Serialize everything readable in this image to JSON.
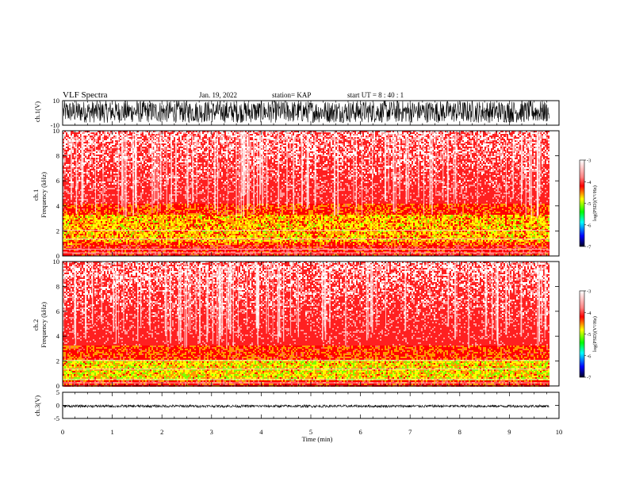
{
  "header": {
    "title": "VLF Spectra",
    "date": "Jan. 19, 2022",
    "station": "station= KAP",
    "start": "start  UT  =   8 : 40 : 1"
  },
  "chart_data": [
    {
      "type": "line",
      "panel": "ch1_waveform",
      "ylabel": "ch.1(V)",
      "ylim": [
        -10,
        10
      ],
      "yticks": [
        "10",
        "-10"
      ],
      "xlim": [
        0,
        10
      ],
      "data_range_x": [
        0,
        9.8
      ],
      "description_values": {
        "typical_amplitude": [
          -8,
          10
        ]
      }
    },
    {
      "type": "heatmap",
      "panel": "ch1_spectrogram",
      "ylabel": "ch.1\nFrequency (kHz)",
      "ylim": [
        0,
        10
      ],
      "yticks": [
        "0",
        "2",
        "4",
        "6",
        "8",
        "10"
      ],
      "xlim": [
        0,
        10
      ],
      "data_range_x": [
        0,
        9.8
      ],
      "colorbar": {
        "label": "log(PSD)(V²/Hz)",
        "range": [
          -7,
          -3
        ],
        "ticks": [
          "-3",
          "-4",
          "-5",
          "-6",
          "-7"
        ],
        "colors": [
          "#ffffff",
          "#ff0000",
          "#ffff00",
          "#00ff00",
          "#00ffff",
          "#0000ff",
          "#000000"
        ]
      },
      "bands": [
        {
          "f_low": 3.3,
          "f_high": 4.2,
          "level": -4.0
        },
        {
          "f_low": 1.2,
          "f_high": 3.3,
          "level": -4.6
        },
        {
          "f_low": 0.9,
          "f_high": 1.2,
          "level": -4.2
        },
        {
          "f_low": 0.0,
          "f_high": 0.9,
          "level": -3.7
        }
      ]
    },
    {
      "type": "heatmap",
      "panel": "ch2_spectrogram",
      "ylabel": "ch.2\nFrequency (kHz)",
      "ylim": [
        0,
        10
      ],
      "yticks": [
        "0",
        "2",
        "4",
        "6",
        "8",
        "10"
      ],
      "xlim": [
        0,
        10
      ],
      "data_range_x": [
        0,
        9.8
      ],
      "colorbar": {
        "label": "log(PSD)(V²/Hz)",
        "range": [
          -7,
          -3
        ],
        "ticks": [
          "-3",
          "-4",
          "-5",
          "-6",
          "-7"
        ],
        "colors": [
          "#ffffff",
          "#ff0000",
          "#ffff00",
          "#00ff00",
          "#00ffff",
          "#0000ff",
          "#000000"
        ]
      },
      "bands": [
        {
          "f_low": 2.2,
          "f_high": 3.3,
          "level": -4.0
        },
        {
          "f_low": 0.5,
          "f_high": 2.2,
          "level": -4.8
        },
        {
          "f_low": 0.0,
          "f_high": 0.5,
          "level": -3.8
        }
      ]
    },
    {
      "type": "line",
      "panel": "ch3_waveform",
      "ylabel": "ch.3(V)",
      "ylim": [
        -5,
        5
      ],
      "yticks": [
        "5",
        "0",
        "-5"
      ],
      "xlim": [
        0,
        10
      ],
      "data_range_x": [
        0,
        9.8
      ],
      "description_values": {
        "typical_amplitude": [
          -0.8,
          0.2
        ]
      }
    }
  ],
  "xaxis": {
    "label": "Time (min)",
    "ticks": [
      "0",
      "1",
      "2",
      "3",
      "4",
      "5",
      "6",
      "7",
      "8",
      "9",
      "10"
    ],
    "range": [
      0,
      10
    ]
  }
}
